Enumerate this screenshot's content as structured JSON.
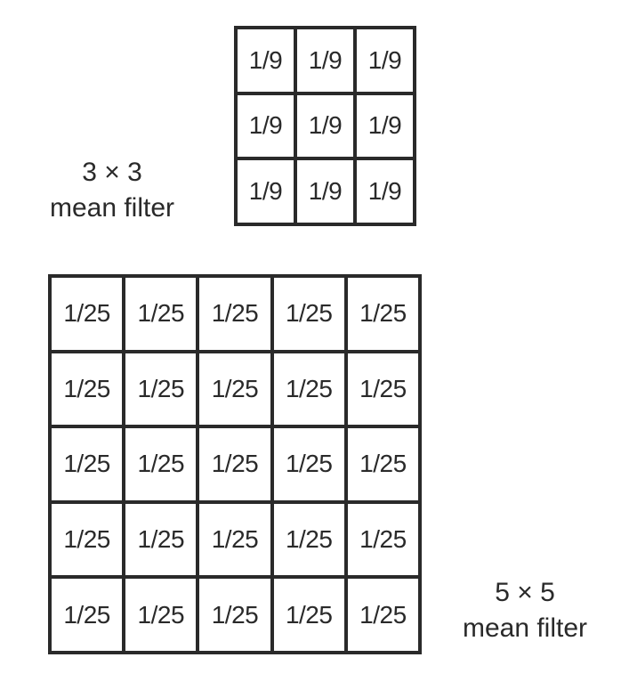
{
  "filter_3x3": {
    "title_line1": "3 × 3",
    "title_line2": "mean filter",
    "cells": [
      [
        "1/9",
        "1/9",
        "1/9"
      ],
      [
        "1/9",
        "1/9",
        "1/9"
      ],
      [
        "1/9",
        "1/9",
        "1/9"
      ]
    ]
  },
  "filter_5x5": {
    "title_line1": "5 × 5",
    "title_line2": "mean filter",
    "cells": [
      [
        "1/25",
        "1/25",
        "1/25",
        "1/25",
        "1/25"
      ],
      [
        "1/25",
        "1/25",
        "1/25",
        "1/25",
        "1/25"
      ],
      [
        "1/25",
        "1/25",
        "1/25",
        "1/25",
        "1/25"
      ],
      [
        "1/25",
        "1/25",
        "1/25",
        "1/25",
        "1/25"
      ],
      [
        "1/25",
        "1/25",
        "1/25",
        "1/25",
        "1/25"
      ]
    ]
  }
}
